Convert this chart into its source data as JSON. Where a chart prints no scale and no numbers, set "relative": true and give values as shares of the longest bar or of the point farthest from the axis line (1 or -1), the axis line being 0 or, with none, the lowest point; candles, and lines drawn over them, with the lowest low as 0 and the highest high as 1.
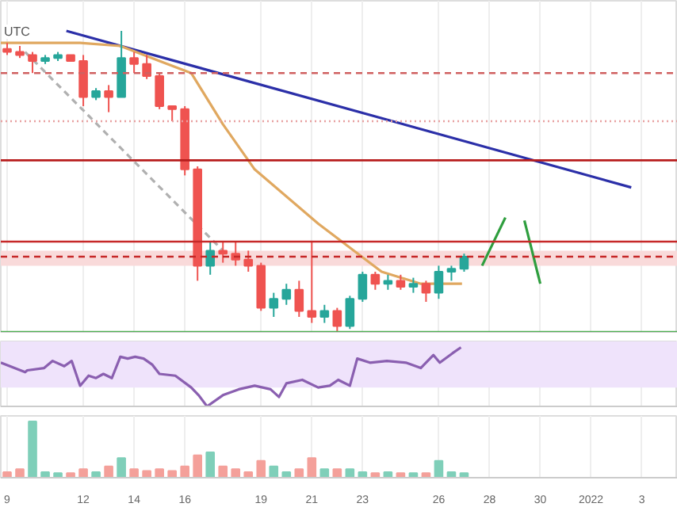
{
  "chart_data": [
    {
      "type": "candlestick",
      "relative": true,
      "annotations": [
        "UTC"
      ],
      "grid": "x",
      "tick_labels": false,
      "xlim": [
        "2021-12-08T18:00",
        "2022-01-04T10:00"
      ],
      "xticks": [
        {
          "value": "2021-12-09",
          "label": null
        },
        {
          "value": "2021-12-12",
          "label": null
        },
        {
          "value": "2021-12-14",
          "label": null
        },
        {
          "value": "2021-12-16",
          "label": null
        },
        {
          "value": "2021-12-19",
          "label": null
        },
        {
          "value": "2021-12-21",
          "label": null
        },
        {
          "value": "2021-12-23",
          "label": null
        },
        {
          "value": "2021-12-26",
          "label": null
        },
        {
          "value": "2021-12-28",
          "label": null
        },
        {
          "value": "2021-12-30",
          "label": null
        },
        {
          "value": "2022-01-01",
          "label": null
        },
        {
          "value": "2022-01-03",
          "label": null
        }
      ],
      "x": [
        "2021-12-09T00:00",
        "2021-12-09T12:00",
        "2021-12-10T00:00",
        "2021-12-10T12:00",
        "2021-12-11T00:00",
        "2021-12-11T12:00",
        "2021-12-12T00:00",
        "2021-12-12T12:00",
        "2021-12-13T00:00",
        "2021-12-13T12:00",
        "2021-12-14T00:00",
        "2021-12-14T12:00",
        "2021-12-15T00:00",
        "2021-12-15T12:00",
        "2021-12-16T00:00",
        "2021-12-16T12:00",
        "2021-12-17T00:00",
        "2021-12-17T12:00",
        "2021-12-18T00:00",
        "2021-12-18T12:00",
        "2021-12-19T00:00",
        "2021-12-19T12:00",
        "2021-12-20T00:00",
        "2021-12-20T12:00",
        "2021-12-21T00:00",
        "2021-12-21T12:00",
        "2021-12-22T00:00",
        "2021-12-22T12:00",
        "2021-12-23T00:00",
        "2021-12-23T12:00",
        "2021-12-24T00:00",
        "2021-12-24T12:00",
        "2021-12-25T00:00",
        "2021-12-25T12:00",
        "2021-12-26T00:00",
        "2021-12-26T12:00",
        "2021-12-27T00:00"
      ],
      "ohlc": [
        [
          0.94,
          0.96,
          0.92,
          0.93
        ],
        [
          0.93,
          0.95,
          0.91,
          0.92
        ],
        [
          0.92,
          0.93,
          0.86,
          0.9
        ],
        [
          0.9,
          0.92,
          0.89,
          0.91
        ],
        [
          0.91,
          0.93,
          0.9,
          0.92
        ],
        [
          0.92,
          0.92,
          0.9,
          0.9
        ],
        [
          0.9,
          0.92,
          0.75,
          0.78
        ],
        [
          0.78,
          0.81,
          0.77,
          0.8
        ],
        [
          0.8,
          0.82,
          0.73,
          0.78
        ],
        [
          0.78,
          1.0,
          0.78,
          0.91
        ],
        [
          0.91,
          0.93,
          0.86,
          0.89
        ],
        [
          0.89,
          0.92,
          0.84,
          0.85
        ],
        [
          0.85,
          0.86,
          0.74,
          0.75
        ],
        [
          0.75,
          0.75,
          0.7,
          0.74
        ],
        [
          0.74,
          0.75,
          0.52,
          0.54
        ],
        [
          0.54,
          0.55,
          0.17,
          0.22
        ],
        [
          0.22,
          0.3,
          0.19,
          0.27
        ],
        [
          0.27,
          0.3,
          0.23,
          0.26
        ],
        [
          0.26,
          0.3,
          0.22,
          0.24
        ],
        [
          0.24,
          0.27,
          0.2,
          0.22
        ],
        [
          0.22,
          0.23,
          0.07,
          0.08
        ],
        [
          0.08,
          0.13,
          0.05,
          0.11
        ],
        [
          0.11,
          0.16,
          0.09,
          0.14
        ],
        [
          0.14,
          0.17,
          0.05,
          0.07
        ],
        [
          0.07,
          0.3,
          0.03,
          0.05
        ],
        [
          0.05,
          0.09,
          0.03,
          0.07
        ],
        [
          0.07,
          0.08,
          0,
          0.02
        ],
        [
          0.02,
          0.12,
          0.01,
          0.11
        ],
        [
          0.11,
          0.2,
          0.1,
          0.19
        ],
        [
          0.19,
          0.2,
          0.14,
          0.16
        ],
        [
          0.16,
          0.19,
          0.14,
          0.17
        ],
        [
          0.17,
          0.19,
          0.14,
          0.15
        ],
        [
          0.15,
          0.18,
          0.13,
          0.16
        ],
        [
          0.16,
          0.17,
          0.1,
          0.13
        ],
        [
          0.13,
          0.22,
          0.11,
          0.2
        ],
        [
          0.2,
          0.22,
          0.17,
          0.21
        ],
        [
          0.21,
          0.26,
          0.2,
          0.25
        ]
      ],
      "colors": [
        "#ef5350",
        "#ef5350",
        "#ef5350",
        "#26a69a",
        "#26a69a",
        "#ef5350",
        "#ef5350",
        "#26a69a",
        "#ef5350",
        "#26a69a",
        "#ef5350",
        "#ef5350",
        "#ef5350",
        "#ef5350",
        "#ef5350",
        "#ef5350",
        "#26a69a",
        "#ef5350",
        "#ef5350",
        "#ef5350",
        "#ef5350",
        "#26a69a",
        "#26a69a",
        "#ef5350",
        "#ef5350",
        "#26a69a",
        "#ef5350",
        "#26a69a",
        "#26a69a",
        "#ef5350",
        "#26a69a",
        "#ef5350",
        "#26a69a",
        "#ef5350",
        "#26a69a",
        "#26a69a",
        "#26a69a"
      ],
      "series": [
        {
          "type": "line",
          "color": "#2b2fa8",
          "x": [
            "2021-12-11T08:00",
            "2022-01-02T14:00"
          ],
          "values": [
            1.0,
            0.48
          ]
        },
        {
          "type": "line",
          "color": "#e0a860",
          "x": [
            "2021-12-08T18:00",
            "2021-12-11T21:00",
            "2021-12-13T11:00",
            "2021-12-15T00:00",
            "2021-12-16T06:00",
            "2021-12-17T12:00",
            "2021-12-18T18:00",
            "2021-12-21T06:00",
            "2021-12-23T18:00",
            "2021-12-25T07:00",
            "2021-12-26T22:00"
          ],
          "values": [
            0.96,
            0.96,
            0.95,
            0.9,
            0.86,
            0.69,
            0.54,
            0.36,
            0.2,
            0.16,
            0.16
          ]
        },
        {
          "type": "line",
          "color": "#b0b0b0",
          "line_style": "dashed",
          "x": [
            "2021-12-09T17:00",
            "2021-12-17T12:00"
          ],
          "values": [
            0.93,
            0.27
          ]
        },
        {
          "type": "line",
          "color": "#2e9e3e",
          "x": [
            "2021-12-27T17:00",
            "2021-12-28T15:00"
          ],
          "values": [
            0.22,
            0.38
          ]
        },
        {
          "type": "line",
          "color": "#2e9e3e",
          "x": [
            "2021-12-29T09:00",
            "2021-12-30T00:00"
          ],
          "values": [
            0.37,
            0.16
          ]
        }
      ],
      "ref_lines": [
        {
          "axis": "y",
          "value": 0.86,
          "color": "#d06060",
          "line_style": "dashed"
        },
        {
          "axis": "y",
          "value": 0.7,
          "color": "#e8a0a0",
          "line_style": "dotted"
        },
        {
          "axis": "y",
          "value": 0.57,
          "color": "#b71c1c",
          "line_style": "solid"
        },
        {
          "axis": "y",
          "value": 0.3,
          "color": "#c62828",
          "line_style": "solid"
        },
        {
          "axis": "y",
          "value": 0.25,
          "color": "#c62828",
          "line_style": "dashed"
        },
        {
          "axis": "y",
          "value": 0,
          "color": "#4caf50",
          "line_style": "solid"
        }
      ],
      "bands": [
        {
          "axis": "y",
          "from": 0.22,
          "to": 0.27,
          "color": "#f9dada"
        }
      ]
    },
    {
      "type": "line",
      "relative": true,
      "grid": "x",
      "tick_labels": false,
      "color": "#8a5fb0",
      "xlim": [
        "2021-12-08T18:00",
        "2022-01-04T10:00"
      ],
      "xticks": [
        {
          "value": "2021-12-09",
          "label": null
        },
        {
          "value": "2021-12-12",
          "label": null
        },
        {
          "value": "2021-12-14",
          "label": null
        },
        {
          "value": "2021-12-16",
          "label": null
        },
        {
          "value": "2021-12-19",
          "label": null
        },
        {
          "value": "2021-12-21",
          "label": null
        },
        {
          "value": "2021-12-23",
          "label": null
        },
        {
          "value": "2021-12-26",
          "label": null
        },
        {
          "value": "2021-12-28",
          "label": null
        },
        {
          "value": "2021-12-30",
          "label": null
        },
        {
          "value": "2022-01-01",
          "label": null
        },
        {
          "value": "2022-01-03",
          "label": null
        }
      ],
      "x": [
        "2021-12-08T18:00",
        "2021-12-09T17:00",
        "2021-12-09T19:00",
        "2021-12-10T11:00",
        "2021-12-10T19:00",
        "2021-12-11T06:00",
        "2021-12-11T13:00",
        "2021-12-11T21:00",
        "2021-12-12T05:00",
        "2021-12-12T12:00",
        "2021-12-12T19:00",
        "2021-12-13T03:00",
        "2021-12-13T11:00",
        "2021-12-13T18:00",
        "2021-12-14T01:00",
        "2021-12-14T09:00",
        "2021-12-14T17:00",
        "2021-12-15T00:00",
        "2021-12-15T15:00",
        "2021-12-16T06:00",
        "2021-12-16T13:00",
        "2021-12-16T21:00",
        "2021-12-17T12:00",
        "2021-12-18T03:00",
        "2021-12-18T18:00",
        "2021-12-19T09:00",
        "2021-12-19T17:00",
        "2021-12-20T00:00",
        "2021-12-20T15:00",
        "2021-12-21T06:00",
        "2021-12-21T17:00",
        "2021-12-22T01:00",
        "2021-12-22T12:00",
        "2021-12-22T19:00",
        "2021-12-23T07:00",
        "2021-12-23T23:00",
        "2021-12-24T17:00",
        "2021-12-25T07:00",
        "2021-12-25T19:00",
        "2021-12-26T01:00",
        "2021-12-26T13:00",
        "2021-12-26T21:00"
      ],
      "values": [
        0.74,
        0.58,
        0.61,
        0.65,
        0.77,
        0.68,
        0.77,
        0.35,
        0.52,
        0.48,
        0.55,
        0.48,
        0.84,
        0.81,
        0.84,
        0.81,
        0.71,
        0.55,
        0.52,
        0.32,
        0.19,
        0,
        0.19,
        0.29,
        0.35,
        0.29,
        0.16,
        0.39,
        0.45,
        0.32,
        0.35,
        0.45,
        0.35,
        0.81,
        0.74,
        0.77,
        0.74,
        0.65,
        0.87,
        0.74,
        0.9,
        1
      ],
      "bands": [
        {
          "axis": "y",
          "from": 0.32,
          "to": 1.13,
          "color": "#efe3fb"
        }
      ]
    },
    {
      "type": "bar",
      "relative": true,
      "grid": "x",
      "tick_labels": "x",
      "xlim": [
        "2021-12-08T18:00",
        "2022-01-04T10:00"
      ],
      "xticks": [
        {
          "value": "2021-12-09",
          "label": "9"
        },
        {
          "value": "2021-12-12",
          "label": "12"
        },
        {
          "value": "2021-12-14",
          "label": "14"
        },
        {
          "value": "2021-12-16",
          "label": "16"
        },
        {
          "value": "2021-12-19",
          "label": "19"
        },
        {
          "value": "2021-12-21",
          "label": "21"
        },
        {
          "value": "2021-12-23",
          "label": "23"
        },
        {
          "value": "2021-12-26",
          "label": "26"
        },
        {
          "value": "2021-12-28",
          "label": "28"
        },
        {
          "value": "2021-12-30",
          "label": "30"
        },
        {
          "value": "2022-01-01",
          "label": "2022"
        },
        {
          "value": "2022-01-03",
          "label": "3"
        }
      ],
      "x": [
        "2021-12-09T00:00",
        "2021-12-09T12:00",
        "2021-12-10T00:00",
        "2021-12-10T12:00",
        "2021-12-11T00:00",
        "2021-12-11T12:00",
        "2021-12-12T00:00",
        "2021-12-12T12:00",
        "2021-12-13T00:00",
        "2021-12-13T12:00",
        "2021-12-14T00:00",
        "2021-12-14T12:00",
        "2021-12-15T00:00",
        "2021-12-15T12:00",
        "2021-12-16T00:00",
        "2021-12-16T12:00",
        "2021-12-17T00:00",
        "2021-12-17T12:00",
        "2021-12-18T00:00",
        "2021-12-18T12:00",
        "2021-12-19T00:00",
        "2021-12-19T12:00",
        "2021-12-20T00:00",
        "2021-12-20T12:00",
        "2021-12-21T00:00",
        "2021-12-21T12:00",
        "2021-12-22T00:00",
        "2021-12-22T12:00",
        "2021-12-23T00:00",
        "2021-12-23T12:00",
        "2021-12-24T00:00",
        "2021-12-24T12:00",
        "2021-12-25T00:00",
        "2021-12-25T12:00",
        "2021-12-26T00:00",
        "2021-12-26T12:00",
        "2021-12-27T00:00"
      ],
      "values": [
        0.1,
        0.15,
        1,
        0.1,
        0.08,
        0.08,
        0.15,
        0.1,
        0.2,
        0.35,
        0.15,
        0.12,
        0.15,
        0.12,
        0.2,
        0.4,
        0.45,
        0.2,
        0.15,
        0.1,
        0.3,
        0.2,
        0.1,
        0.15,
        0.35,
        0.15,
        0.15,
        0.15,
        0.1,
        0.08,
        0.1,
        0.08,
        0.08,
        0.08,
        0.3,
        0.1,
        0.08
      ],
      "colors": [
        "#f4a09a",
        "#f4a09a",
        "#7fcfb9",
        "#7fcfb9",
        "#7fcfb9",
        "#f4a09a",
        "#f4a09a",
        "#7fcfb9",
        "#f4a09a",
        "#7fcfb9",
        "#f4a09a",
        "#f4a09a",
        "#f4a09a",
        "#f4a09a",
        "#f4a09a",
        "#f4a09a",
        "#7fcfb9",
        "#f4a09a",
        "#f4a09a",
        "#f4a09a",
        "#f4a09a",
        "#7fcfb9",
        "#7fcfb9",
        "#f4a09a",
        "#f4a09a",
        "#7fcfb9",
        "#f4a09a",
        "#7fcfb9",
        "#7fcfb9",
        "#f4a09a",
        "#7fcfb9",
        "#f4a09a",
        "#7fcfb9",
        "#f4a09a",
        "#7fcfb9",
        "#7fcfb9",
        "#7fcfb9"
      ]
    }
  ]
}
